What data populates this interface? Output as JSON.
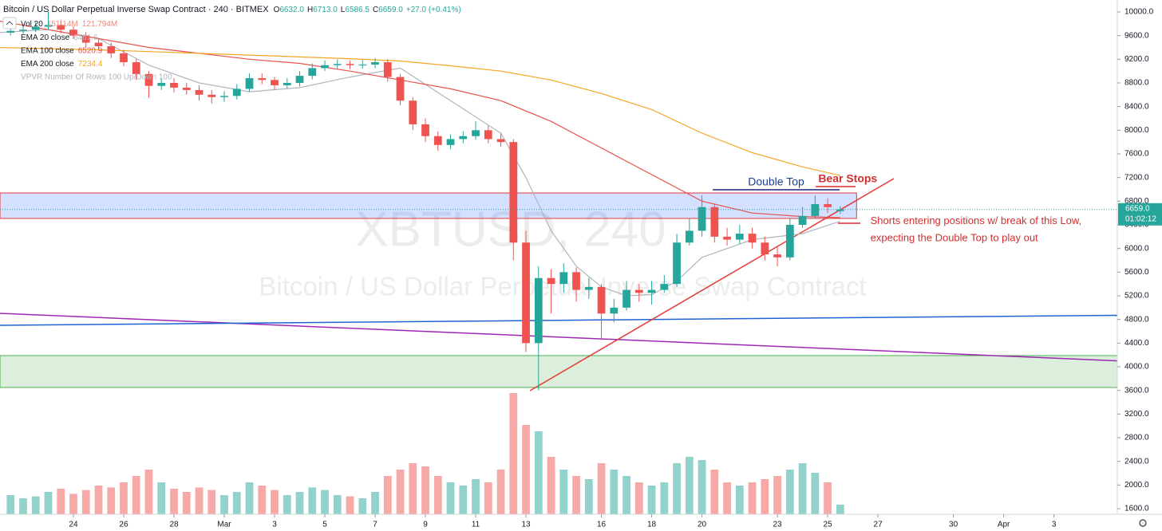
{
  "chart_data": {
    "type": "candlestick",
    "header": {
      "symbol": "Bitcoin / US Dollar Perpetual Inverse Swap Contract · 240 · BITMEX",
      "ohlc_keys": [
        "O",
        "H",
        "L",
        "C"
      ],
      "ohlc_values": [
        "6632.0",
        "6713.0",
        "6586.5",
        "6659.0"
      ],
      "change": "+27.0 (+0.41%)"
    },
    "volume_legend": {
      "name": "Vol 20",
      "value": "151.14M",
      "ma": "121.794M"
    },
    "vpvr_label": "VPVR Number Of Rows 100 Up/Down 100",
    "watermark": [
      "XBTUSD, 240",
      "Bitcoin / US Dollar Perpetual Inverse Swap Contract"
    ],
    "last_price_label": "6659.0",
    "countdown": "01:02:12",
    "up_color": "#26a69a",
    "down_color": "#ef5350",
    "candles": {
      "x": [
        -2.5,
        -2,
        -1.5,
        -1,
        -0.5,
        0,
        0.5,
        1,
        1.5,
        2,
        2.5,
        3,
        3.5,
        4,
        4.5,
        5,
        5.5,
        6,
        6.5,
        7,
        7.5,
        8,
        8.5,
        9,
        9.5,
        10,
        10.5,
        11,
        11.5,
        12,
        12.5,
        13,
        13.5,
        14,
        14.5,
        15,
        15.5,
        16,
        16.5,
        17,
        17.5,
        18,
        18.5,
        19,
        19.5,
        20,
        20.5,
        21,
        21.5,
        22,
        22.5,
        23,
        23.5,
        24,
        24.5,
        25,
        25.5,
        26,
        26.5,
        27,
        27.5,
        28,
        28.5,
        29,
        29.5,
        30,
        30.5
      ],
      "open": [
        9650,
        9680,
        9700,
        9750,
        9780,
        9700,
        9600,
        9480,
        9420,
        9300,
        9150,
        8950,
        8750,
        8800,
        8720,
        8680,
        8600,
        8560,
        8580,
        8700,
        8880,
        8850,
        8760,
        8800,
        8920,
        9050,
        9100,
        9120,
        9100,
        9110,
        9150,
        8900,
        8500,
        8100,
        7900,
        7750,
        7850,
        7900,
        8000,
        7850,
        7800,
        6100,
        4400,
        5500,
        5400,
        5600,
        5300,
        5350,
        4900,
        5000,
        5300,
        5250,
        5300,
        5400,
        6100,
        6300,
        6700,
        6200,
        6150,
        6250,
        6100,
        5900,
        5850,
        6400,
        6550,
        6750,
        6632
      ],
      "high": [
        9760,
        9780,
        9830,
        10000,
        9860,
        9760,
        9660,
        9560,
        9480,
        9360,
        9200,
        9000,
        8880,
        8880,
        8800,
        8760,
        8680,
        8660,
        8780,
        8960,
        8960,
        8900,
        8880,
        9000,
        9130,
        9180,
        9200,
        9180,
        9190,
        9220,
        9200,
        8950,
        8560,
        8200,
        7980,
        7930,
        7980,
        8150,
        8080,
        7950,
        7850,
        6300,
        5700,
        5650,
        5750,
        5680,
        5500,
        5400,
        5150,
        5450,
        5400,
        5450,
        5550,
        6250,
        6500,
        6900,
        6750,
        6350,
        6400,
        6350,
        6200,
        6050,
        6500,
        6700,
        6900,
        6850,
        6713
      ],
      "low": [
        9600,
        9630,
        9660,
        9700,
        9640,
        9540,
        9400,
        9350,
        9220,
        9080,
        8850,
        8550,
        8680,
        8640,
        8600,
        8500,
        8450,
        8480,
        8520,
        8650,
        8780,
        8680,
        8700,
        8740,
        8860,
        9000,
        9040,
        9030,
        9040,
        9050,
        8820,
        8420,
        8000,
        7800,
        7650,
        7680,
        7780,
        7840,
        7780,
        7720,
        5800,
        4250,
        3600,
        4900,
        5250,
        5100,
        5150,
        4450,
        4750,
        4950,
        5100,
        5050,
        5250,
        5350,
        6050,
        6200,
        6100,
        6050,
        6080,
        6000,
        5800,
        5700,
        5800,
        6350,
        6500,
        6600,
        6586.5
      ],
      "close": [
        9680,
        9700,
        9750,
        9780,
        9700,
        9600,
        9480,
        9420,
        9300,
        9150,
        8950,
        8750,
        8800,
        8720,
        8680,
        8600,
        8560,
        8580,
        8700,
        8880,
        8850,
        8760,
        8800,
        8920,
        9050,
        9100,
        9120,
        9100,
        9110,
        9150,
        8900,
        8500,
        8100,
        7900,
        7750,
        7850,
        7900,
        8000,
        7850,
        7800,
        6100,
        4400,
        5500,
        5400,
        5600,
        5300,
        5350,
        4900,
        5000,
        5300,
        5250,
        5300,
        5400,
        6100,
        6300,
        6700,
        6200,
        6150,
        6250,
        6100,
        5900,
        5850,
        6400,
        6550,
        6750,
        6700,
        6659
      ],
      "volume": [
        300,
        250,
        280,
        350,
        400,
        320,
        380,
        450,
        420,
        500,
        600,
        700,
        500,
        400,
        350,
        420,
        380,
        300,
        350,
        500,
        450,
        380,
        300,
        350,
        420,
        380,
        300,
        280,
        250,
        350,
        600,
        700,
        800,
        750,
        600,
        500,
        450,
        550,
        500,
        700,
        1900,
        1400,
        1300,
        900,
        700,
        600,
        550,
        800,
        700,
        600,
        500,
        450,
        500,
        800,
        900,
        850,
        700,
        500,
        450,
        500,
        550,
        600,
        700,
        800,
        650,
        500,
        151.14
      ]
    },
    "series": [
      {
        "name": "EMA 20 close",
        "color": "#b2b5be",
        "last_value": "6461.6",
        "x": [
          -3,
          -1,
          1,
          3,
          5,
          7,
          9,
          11,
          13,
          15,
          17,
          18,
          19,
          20,
          21,
          22,
          23,
          24,
          25,
          27,
          29,
          30.5
        ],
        "values": [
          9650,
          9700,
          9550,
          9100,
          8800,
          8650,
          8720,
          8900,
          9050,
          8500,
          7950,
          7200,
          6300,
          5700,
          5350,
          5200,
          5220,
          5450,
          5850,
          6150,
          6250,
          6461.6
        ]
      },
      {
        "name": "EMA 100 close",
        "color": "#e5534b",
        "last_value": "6520.9",
        "x": [
          -3,
          -1,
          1,
          3,
          5,
          7,
          9,
          11,
          13,
          15,
          17,
          19,
          21,
          23,
          25,
          27,
          29,
          30.5
        ],
        "values": [
          9850,
          9700,
          9550,
          9400,
          9300,
          9200,
          9130,
          9000,
          8850,
          8700,
          8500,
          8150,
          7700,
          7250,
          6800,
          6600,
          6540,
          6520.9
        ]
      },
      {
        "name": "EMA 200 close",
        "color": "#f5a623",
        "last_value": "7234.4",
        "x": [
          -3,
          -1,
          1,
          3,
          5,
          7,
          9,
          11,
          13,
          15,
          17,
          19,
          21,
          23,
          25,
          27,
          29,
          30.5
        ],
        "values": [
          9400,
          9380,
          9360,
          9330,
          9300,
          9270,
          9240,
          9210,
          9170,
          9090,
          9000,
          8850,
          8620,
          8350,
          7950,
          7620,
          7380,
          7234.4
        ]
      }
    ],
    "zones": [
      {
        "x": [
          -2.92,
          31.15
        ],
        "top": 6939,
        "bottom": 6508,
        "color": "#2962ff"
      },
      {
        "x": [
          -2.92,
          43.3
        ],
        "top": 4189,
        "bottom": 3650,
        "color": "#4caf50"
      }
    ],
    "lines": [
      {
        "x": [
          -2.92,
          43.3
        ],
        "y": [
          4904,
          4068
        ],
        "color": "#9c27b0"
      },
      {
        "x": [
          -2.92,
          43.3
        ],
        "y": [
          4701,
          4877
        ],
        "color": "#1e63d6"
      },
      {
        "x": [
          18.16,
          32.63
        ],
        "y": [
          3596,
          7182
        ],
        "color": "#e53935"
      },
      {
        "x": [
          25.43,
          30.48
        ],
        "y": [
          6993,
          6993
        ],
        "color": "#1a237e"
      },
      {
        "x": [
          29.52,
          31.11
        ],
        "y": [
          7047,
          7047
        ],
        "color": "#d32f2f"
      },
      {
        "x": [
          30.41,
          31.3
        ],
        "y": [
          6427,
          6427
        ],
        "color": "#d32f2f"
      }
    ],
    "annotations": [
      {
        "text": "Double Top",
        "x": 27.95,
        "y": 7120,
        "color": "#1a3e9e"
      },
      {
        "text": "Bear Stops",
        "x": 30.8,
        "y": 7170,
        "color": "#d32f2f"
      },
      {
        "text": "Shorts entering positions w/ break of this Low,",
        "x": 31.7,
        "y": 6460,
        "color": "#d32f2f"
      },
      {
        "text": "expecting the Double Top to play out",
        "x": 31.7,
        "y": 6170,
        "color": "#d32f2f"
      }
    ],
    "xlim": [
      -2.92,
      41.52
    ],
    "ylim": [
      1506,
      10202
    ],
    "xticks": [
      {
        "value": 0,
        "label": "24"
      },
      {
        "value": 2,
        "label": "26"
      },
      {
        "value": 4,
        "label": "28"
      },
      {
        "value": 6,
        "label": "Mar"
      },
      {
        "value": 8,
        "label": "3"
      },
      {
        "value": 10,
        "label": "5"
      },
      {
        "value": 12,
        "label": "7"
      },
      {
        "value": 14,
        "label": "9"
      },
      {
        "value": 16,
        "label": "11"
      },
      {
        "value": 18,
        "label": "13"
      },
      {
        "value": 21,
        "label": "16"
      },
      {
        "value": 23,
        "label": "18"
      },
      {
        "value": 25,
        "label": "20"
      },
      {
        "value": 28,
        "label": "23"
      },
      {
        "value": 30,
        "label": "25"
      },
      {
        "value": 32,
        "label": "27"
      },
      {
        "value": 35,
        "label": "30"
      },
      {
        "value": 37,
        "label": "Apr"
      },
      {
        "value": 39,
        "label": "3"
      }
    ],
    "yticks": [
      {
        "value": 10000,
        "label": "10000.0"
      },
      {
        "value": 9600,
        "label": "9600.0"
      },
      {
        "value": 9200,
        "label": "9200.0"
      },
      {
        "value": 8800,
        "label": "8800.0"
      },
      {
        "value": 8400,
        "label": "8400.0"
      },
      {
        "value": 8000,
        "label": "8000.0"
      },
      {
        "value": 7600,
        "label": "7600.0"
      },
      {
        "value": 7200,
        "label": "7200.0"
      },
      {
        "value": 6800,
        "label": "6800.0"
      },
      {
        "value": 6400,
        "label": "6400.0"
      },
      {
        "value": 6000,
        "label": "6000.0"
      },
      {
        "value": 5600,
        "label": "5600.0"
      },
      {
        "value": 5200,
        "label": "5200.0"
      },
      {
        "value": 4800,
        "label": "4800.0"
      },
      {
        "value": 4400,
        "label": "4400.0"
      },
      {
        "value": 4000,
        "label": "4000.0"
      },
      {
        "value": 3600,
        "label": "3600.0"
      },
      {
        "value": 3200,
        "label": "3200.0"
      },
      {
        "value": 2800,
        "label": "2800.0"
      },
      {
        "value": 2400,
        "label": "2400.0"
      },
      {
        "value": 2000,
        "label": "2000.0"
      },
      {
        "value": 1600,
        "label": "1600.0"
      }
    ]
  }
}
